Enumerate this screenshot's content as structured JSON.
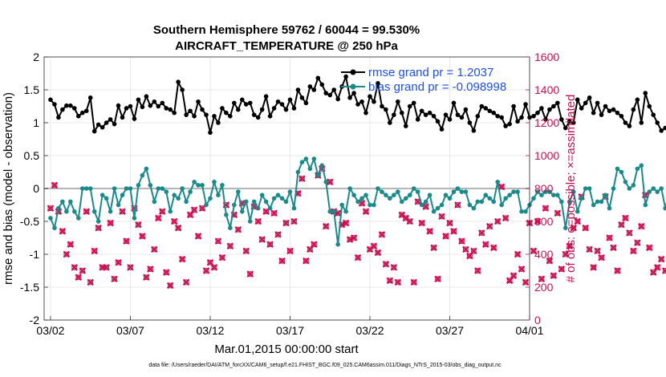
{
  "chart_data": {
    "type": "line",
    "title": "Southern Hemisphere 59762 / 60044 = 99.530%",
    "subtitle": "AIRCRAFT_TEMPERATURE @ 250 hPa",
    "xlabel": "Mar.01,2015 00:00:00 start",
    "ylabel_left": "rmse and bias (model - observation)",
    "ylabel_right": "# of obs: o=possible; ×=assimilated",
    "footnote": "data file: /Users/raeder/DAI/ATM_forcXX/CAM6_setup/f.e21.FHIST_BGC.f09_025.CAM6assim.011/Diags_NTrS_2015-03/obs_diag_output.nc",
    "x_ticks": [
      "03/02",
      "03/07",
      "03/12",
      "03/17",
      "03/22",
      "03/27",
      "04/01"
    ],
    "x_tick_days": [
      1,
      6,
      11,
      16,
      21,
      26,
      31
    ],
    "xlim": [
      0.6,
      31
    ],
    "ylim_left": [
      -2,
      2
    ],
    "yticks_left": [
      "-2",
      "-1.5",
      "-1",
      "-0.5",
      "0",
      "0.5",
      "1",
      "1.5",
      "2"
    ],
    "ylim_right": [
      0,
      1600
    ],
    "yticks_right": [
      "0",
      "200",
      "400",
      "600",
      "800",
      "1000",
      "1200",
      "1400",
      "1600"
    ],
    "grid": true,
    "legend_position": "top-right",
    "legend": [
      {
        "label": "rmse grand pr = 1.2037",
        "color": "#000000"
      },
      {
        "label": "bias grand pr = -0.098998",
        "color": "#1a8a8a"
      }
    ],
    "time_step_days": 0.25,
    "series": [
      {
        "name": "rmse",
        "color": "#000000",
        "axis": "left",
        "values": [
          1.35,
          1.28,
          1.08,
          1.2,
          1.26,
          1.26,
          1.22,
          1.1,
          1.15,
          1.18,
          1.38,
          0.87,
          0.97,
          0.93,
          1.0,
          1.05,
          0.98,
          1.26,
          1.08,
          1.22,
          1.25,
          1.06,
          1.35,
          1.24,
          1.4,
          1.26,
          1.32,
          1.25,
          1.3,
          1.22,
          1.2,
          1.15,
          1.62,
          1.5,
          1.12,
          1.18,
          1.1,
          1.32,
          1.2,
          1.12,
          0.85,
          1.1,
          1.0,
          1.22,
          1.15,
          1.1,
          1.3,
          1.2,
          1.35,
          1.28,
          1.3,
          1.12,
          1.08,
          1.2,
          1.4,
          1.1,
          1.22,
          1.32,
          1.28,
          1.2,
          1.35,
          1.22,
          1.5,
          1.38,
          1.3,
          1.55,
          1.5,
          1.68,
          1.58,
          1.45,
          1.42,
          1.5,
          1.36,
          1.55,
          1.7,
          1.38,
          1.45,
          1.28,
          1.32,
          1.15,
          1.4,
          1.32,
          1.6,
          1.25,
          1.2,
          1.0,
          1.12,
          1.32,
          1.15,
          0.95,
          1.25,
          1.3,
          1.05,
          1.18,
          1.12,
          1.15,
          1.1,
          1.02,
          0.9,
          1.12,
          1.05,
          1.3,
          1.12,
          1.08,
          1.2,
          1.0,
          0.88,
          1.1,
          1.25,
          1.22,
          1.18,
          1.15,
          1.1,
          1.08,
          0.95,
          0.98,
          1.25,
          1.02,
          1.08,
          1.28,
          1.08,
          1.1,
          1.15,
          1.22,
          1.05,
          1.2,
          1.25,
          1.3,
          1.05,
          0.92,
          1.02,
          1.0,
          1.35,
          1.22,
          1.3,
          1.38,
          1.15,
          1.3,
          1.12,
          1.25,
          1.18,
          1.2,
          1.15,
          1.1,
          1.0,
          0.95,
          1.2,
          1.35,
          1.0,
          1.45,
          1.25,
          1.12,
          1.0,
          0.88,
          0.92,
          1.0,
          1.15,
          0.95
        ]
      },
      {
        "name": "bias",
        "color": "#1a8a8a",
        "axis": "left",
        "values": [
          -0.45,
          -0.6,
          -0.3,
          -0.2,
          -0.35,
          -0.2,
          -0.35,
          -0.45,
          0.0,
          0.0,
          0.0,
          -0.35,
          -0.5,
          -0.1,
          -0.15,
          -0.35,
          0.0,
          -0.25,
          -0.1,
          0.0,
          0.0,
          -0.45,
          0.05,
          0.2,
          0.3,
          0.05,
          -0.2,
          0.0,
          0.0,
          -0.05,
          -0.35,
          -0.1,
          -0.15,
          0.0,
          -0.2,
          -0.05,
          0.1,
          0.05,
          0.05,
          -0.25,
          -0.15,
          0.1,
          -0.1,
          0.05,
          -0.4,
          -0.6,
          -0.25,
          -0.05,
          -0.35,
          -0.2,
          -0.5,
          -0.2,
          -0.3,
          -0.1,
          -0.2,
          -0.3,
          -0.15,
          -0.1,
          -0.15,
          -0.2,
          -0.05,
          -0.3,
          0.25,
          0.4,
          0.45,
          0.3,
          0.45,
          0.2,
          0.35,
          0.1,
          -0.35,
          -0.35,
          -0.85,
          -0.25,
          -0.35,
          0.0,
          -0.1,
          -0.2,
          -0.15,
          -0.1,
          -0.25,
          -0.25,
          0.0,
          -0.05,
          -0.1,
          -0.15,
          -0.1,
          -0.05,
          -0.2,
          -0.15,
          -0.1,
          0.0,
          -0.05,
          -0.25,
          -0.2,
          -0.1,
          -0.35,
          -0.3,
          -0.25,
          -0.1,
          -0.15,
          -0.05,
          0.0,
          -0.05,
          -0.05,
          -0.25,
          -0.3,
          -0.2,
          -0.2,
          -0.1,
          -0.15,
          -0.2,
          0.1,
          -0.25,
          -0.15,
          -0.1,
          -0.05,
          -0.05,
          -0.35,
          -0.35,
          -0.25,
          -0.15,
          -0.05,
          -0.1,
          -0.05,
          -0.05,
          -0.1,
          -0.1,
          -0.2,
          -0.6,
          -0.2,
          -0.05,
          -0.35,
          -0.15,
          0.0,
          0.0,
          -0.25,
          -0.2,
          -0.2,
          -0.1,
          -0.3,
          0.0,
          0.3,
          0.25,
          0.1,
          0.0,
          0.05,
          0.3,
          0.35,
          -0.25,
          -0.05,
          0.0,
          -0.05,
          0.0,
          -0.3,
          -0.05,
          -0.1,
          -0.15,
          -0.2,
          -0.25
        ]
      },
      {
        "name": "# possible / assimilated",
        "color": "#c8104f",
        "axis": "right",
        "values": [
          680,
          820,
          660,
          540,
          400,
          460,
          320,
          260,
          300,
          660,
          230,
          420,
          560,
          320,
          320,
          590,
          250,
          350,
          660,
          480,
          320,
          680,
          580,
          510,
          260,
          310,
          430,
          620,
          660,
          290,
          210,
          600,
          560,
          370,
          230,
          640,
          670,
          510,
          680,
          300,
          350,
          320,
          480,
          380,
          700,
          450,
          640,
          550,
          710,
          420,
          280,
          690,
          600,
          490,
          660,
          460,
          650,
          520,
          360,
          590,
          420,
          600,
          770,
          860,
          360,
          430,
          460,
          880,
          920,
          570,
          840,
          660,
          650,
          580,
          590,
          490,
          500,
          380,
          710,
          660,
          430,
          450,
          410,
          520,
          340,
          240,
          320,
          230,
          640,
          620,
          600,
          230,
          720,
          590,
          690,
          540,
          440,
          250,
          630,
          510,
          590,
          540,
          700,
          480,
          430,
          390,
          420,
          300,
          530,
          460,
          570,
          440,
          600,
          810,
          620,
          240,
          270,
          400,
          310,
          230,
          590,
          420,
          600,
          250,
          680,
          360,
          270,
          650,
          310,
          400,
          450,
          560,
          600,
          750,
          560,
          430,
          320,
          420,
          380,
          750,
          500,
          440,
          300,
          580,
          620,
          530,
          420,
          470,
          570,
          760,
          440,
          290,
          320,
          370,
          300,
          830
        ]
      }
    ]
  }
}
